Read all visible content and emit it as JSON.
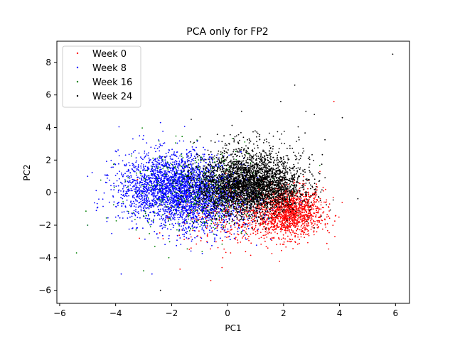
{
  "chart_data": {
    "type": "scatter",
    "title": "PCA only for FP2",
    "xlabel": "PC1",
    "ylabel": "PC2",
    "xlim": [
      -6.1,
      6.5
    ],
    "ylim": [
      -6.8,
      9.3
    ],
    "xticks": [
      -6,
      -4,
      -2,
      0,
      2,
      4,
      6
    ],
    "yticks": [
      -6,
      -4,
      -2,
      0,
      2,
      4,
      6,
      8
    ],
    "grid": false,
    "legend_position": "top-left",
    "series": [
      {
        "name": "Week 0",
        "color": "#ff0000",
        "clusters": [
          {
            "cx": 2.2,
            "cy": -1.2,
            "sx": 0.6,
            "sy": 0.75,
            "n": 1400
          },
          {
            "cx": 0.5,
            "cy": -1.3,
            "sx": 1.1,
            "sy": 1.0,
            "n": 500
          }
        ],
        "outliers": [
          [
            3.8,
            5.6
          ],
          [
            -0.6,
            -5.4
          ],
          [
            -1.7,
            -4.7
          ],
          [
            -0.2,
            -4.6
          ],
          [
            3.5,
            0.2
          ],
          [
            3.3,
            1.3
          ]
        ]
      },
      {
        "name": "Week 8",
        "color": "#0000ff",
        "clusters": [
          {
            "cx": -1.9,
            "cy": 0.3,
            "sx": 1.0,
            "sy": 1.05,
            "n": 2600
          },
          {
            "cx": -0.6,
            "cy": -0.8,
            "sx": 0.9,
            "sy": 1.0,
            "n": 700
          }
        ],
        "outliers": [
          [
            -5.0,
            1.0
          ],
          [
            -5.0,
            -2.0
          ],
          [
            -3.8,
            -5.0
          ],
          [
            -2.7,
            -5.0
          ],
          [
            -2.4,
            4.3
          ],
          [
            -3.0,
            3.5
          ],
          [
            -4.6,
            -0.4
          ]
        ]
      },
      {
        "name": "Week 16",
        "color": "#008000",
        "clusters": [
          {
            "cx": -1.0,
            "cy": 0.1,
            "sx": 1.3,
            "sy": 1.3,
            "n": 450
          }
        ],
        "outliers": [
          [
            -5.4,
            -3.7
          ],
          [
            -5.0,
            -2.0
          ],
          [
            -3.0,
            -4.8
          ],
          [
            -2.6,
            -3.3
          ],
          [
            -2.1,
            -4.0
          ]
        ]
      },
      {
        "name": "Week 24",
        "color": "#000000",
        "clusters": [
          {
            "cx": 0.8,
            "cy": 0.4,
            "sx": 0.9,
            "sy": 0.85,
            "n": 3200
          },
          {
            "cx": 1.0,
            "cy": 2.0,
            "sx": 1.0,
            "sy": 0.9,
            "n": 350
          }
        ],
        "outliers": [
          [
            5.9,
            8.5
          ],
          [
            2.4,
            6.6
          ],
          [
            1.9,
            5.6
          ],
          [
            0.5,
            5.0
          ],
          [
            2.8,
            5.0
          ],
          [
            3.1,
            4.8
          ],
          [
            4.1,
            4.6
          ],
          [
            -1.3,
            4.5
          ],
          [
            -2.4,
            -6.0
          ]
        ]
      }
    ]
  }
}
